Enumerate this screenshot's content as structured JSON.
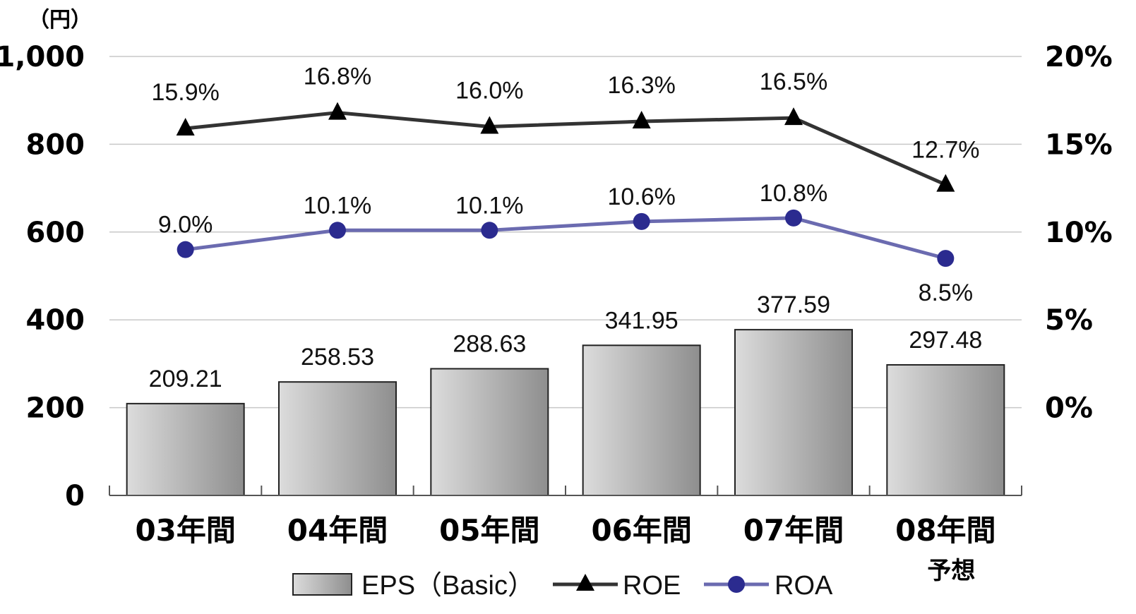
{
  "chart_data": {
    "type": "bar",
    "unit_label": "（円）",
    "categories": [
      "03年間",
      "04年間",
      "05年間",
      "06年間",
      "07年間",
      "08年間"
    ],
    "category_sublabels": [
      "",
      "",
      "",
      "",
      "",
      "予想"
    ],
    "left_axis": {
      "ylim": [
        0,
        1000
      ],
      "ticks": [
        0,
        200,
        400,
        600,
        800,
        1000
      ],
      "tick_labels": [
        "0",
        "200",
        "400",
        "600",
        "800",
        "1,000"
      ]
    },
    "right_axis": {
      "ylim": [
        -0.05,
        0.2
      ],
      "ticks": [
        0,
        0.05,
        0.1,
        0.15,
        0.2
      ],
      "tick_labels": [
        "0%",
        "5%",
        "10%",
        "15%",
        "20%"
      ]
    },
    "grid": true,
    "legend_position": "bottom",
    "series": [
      {
        "name": "EPS（Basic）",
        "kind": "bar",
        "axis": "left",
        "values": [
          209.21,
          258.53,
          288.63,
          341.95,
          377.59,
          297.48
        ],
        "labels": [
          "209.21",
          "258.53",
          "288.63",
          "341.95",
          "377.59",
          "297.48"
        ],
        "color": "#a8a8a8"
      },
      {
        "name": "ROE",
        "kind": "line",
        "axis": "right",
        "marker": "triangle",
        "values": [
          0.159,
          0.168,
          0.16,
          0.163,
          0.165,
          0.127
        ],
        "labels": [
          "15.9%",
          "16.8%",
          "16.0%",
          "16.3%",
          "16.5%",
          "12.7%"
        ],
        "color": "#333333"
      },
      {
        "name": "ROA",
        "kind": "line",
        "axis": "right",
        "marker": "circle",
        "values": [
          0.09,
          0.101,
          0.101,
          0.106,
          0.108,
          0.085
        ],
        "labels": [
          "9.0%",
          "10.1%",
          "10.1%",
          "10.6%",
          "10.8%",
          "8.5%"
        ],
        "color": "#6b6bb0",
        "marker_color": "#2b2b8f"
      }
    ]
  }
}
